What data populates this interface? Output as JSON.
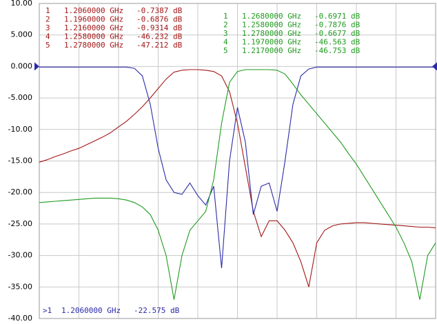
{
  "chart_data": {
    "type": "line",
    "ylim": [
      -40,
      10
    ],
    "yticks": [
      {
        "value": 10,
        "label": "10.00"
      },
      {
        "value": 5,
        "label": "5.000"
      },
      {
        "value": 0,
        "label": "0.000"
      },
      {
        "value": -5,
        "label": "-5.000"
      },
      {
        "value": -10,
        "label": "-10.00"
      },
      {
        "value": -15,
        "label": "-15.00"
      },
      {
        "value": -20,
        "label": "-20.00"
      },
      {
        "value": -25,
        "label": "-25.00"
      },
      {
        "value": -30,
        "label": "-30.00"
      },
      {
        "value": -35,
        "label": "-35.00"
      },
      {
        "value": -40,
        "label": "-40.00"
      }
    ],
    "grid": true,
    "series": [
      {
        "color": "#a31515",
        "values": [
          -15.2,
          -14.8,
          -14.3,
          -13.9,
          -13.4,
          -13,
          -12.4,
          -11.8,
          -11.2,
          -10.5,
          -9.6,
          -8.7,
          -7.6,
          -6.4,
          -5,
          -3.5,
          -2,
          -0.9,
          -0.6,
          -0.5,
          -0.5,
          -0.6,
          -0.8,
          -1.5,
          -4,
          -9,
          -16,
          -23,
          -27,
          -24.5,
          -24.5,
          -26,
          -28,
          -31,
          -35,
          -28,
          -26,
          -25.3,
          -25,
          -24.9,
          -24.8,
          -24.8,
          -24.9,
          -25,
          -25.1,
          -25.2,
          -25.3,
          -25.4,
          -25.5,
          -25.5,
          -25.6
        ]
      },
      {
        "color": "#2a2aa8",
        "values": [
          -0.1,
          -0.1,
          -0.1,
          -0.1,
          -0.1,
          -0.1,
          -0.1,
          -0.1,
          -0.1,
          -0.1,
          -0.1,
          -0.1,
          -0.3,
          -1.5,
          -6,
          -13,
          -18,
          -20,
          -20.3,
          -18.5,
          -20.5,
          -22,
          -19,
          -32,
          -15,
          -6.5,
          -12,
          -23.5,
          -19,
          -18.5,
          -23,
          -15,
          -6,
          -1.5,
          -0.4,
          -0.1,
          -0.1,
          -0.1,
          -0.1,
          -0.1,
          -0.1,
          -0.1,
          -0.1,
          -0.1,
          -0.1,
          -0.1,
          -0.1,
          -0.1,
          -0.1,
          -0.1,
          -0.1
        ]
      },
      {
        "color": "#1e9a1e",
        "values": [
          -21.6,
          -21.5,
          -21.4,
          -21.3,
          -21.2,
          -21.1,
          -21,
          -20.9,
          -20.9,
          -20.9,
          -21,
          -21.2,
          -21.6,
          -22.3,
          -23.5,
          -26,
          -30,
          -37,
          -30,
          -26,
          -24.5,
          -23,
          -18,
          -9,
          -2.5,
          -0.8,
          -0.5,
          -0.5,
          -0.5,
          -0.5,
          -0.6,
          -1.2,
          -2.8,
          -4.5,
          -6,
          -7.5,
          -9,
          -10.5,
          -12,
          -13.8,
          -15.5,
          -17.5,
          -19.5,
          -21.5,
          -23.5,
          -25.5,
          -28,
          -31,
          -37,
          -30,
          -28
        ]
      }
    ],
    "marker_tables": [
      {
        "color": "#a31515",
        "rows": [
          [
            "1",
            "1.2060000 GHz",
            "-0.7387 dB"
          ],
          [
            "2",
            "1.1960000 GHz",
            "-0.6876 dB"
          ],
          [
            "3",
            "1.2160000 GHz",
            "-0.9314 dB"
          ],
          [
            "4",
            "1.2580000 GHz",
            "-46.232 dB"
          ],
          [
            "5",
            "1.2780000 GHz",
            "-47.212 dB"
          ]
        ]
      },
      {
        "color": "#1e9a1e",
        "rows": [
          [
            "1",
            "1.2680000 GHz",
            "-0.6971 dB"
          ],
          [
            "2",
            "1.2580000 GHz",
            "-0.7876 dB"
          ],
          [
            "3",
            "1.2780000 GHz",
            "-0.6677 dB"
          ],
          [
            "4",
            "1.1970000 GHz",
            "-46.563 dB"
          ],
          [
            "5",
            "1.2170000 GHz",
            "-46.753 dB"
          ]
        ]
      },
      {
        "color": "#2a2aa8",
        "rows": [
          [
            ">1",
            "1.2060000 GHz",
            "-22.575 dB"
          ]
        ]
      }
    ]
  }
}
